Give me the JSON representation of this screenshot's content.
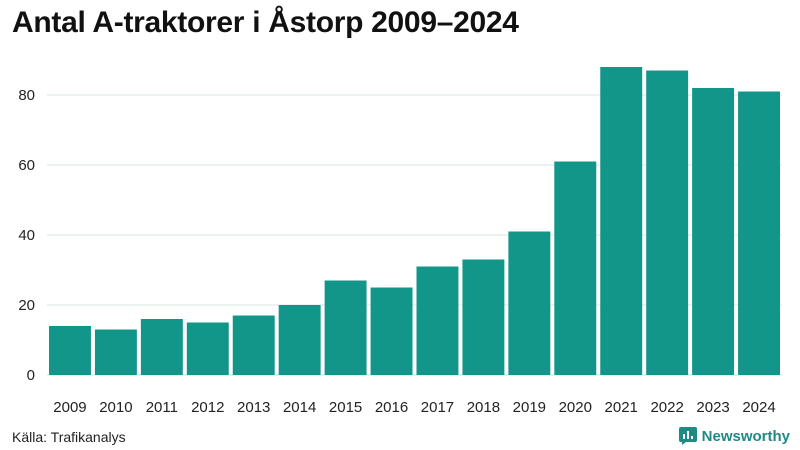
{
  "title": "Antal A-traktorer i Åstorp 2009–2024",
  "source": "Källa: Trafikanalys",
  "brand": {
    "name": "Newsworthy",
    "icon": "newsworthy-logo-icon",
    "color": "#1f8a84"
  },
  "chart_data": {
    "type": "bar",
    "categories": [
      "2009",
      "2010",
      "2011",
      "2012",
      "2013",
      "2014",
      "2015",
      "2016",
      "2017",
      "2018",
      "2019",
      "2020",
      "2021",
      "2022",
      "2023",
      "2024"
    ],
    "values": [
      14,
      13,
      16,
      15,
      17,
      20,
      27,
      25,
      31,
      33,
      41,
      61,
      88,
      87,
      82,
      81
    ],
    "ylim": [
      0,
      90
    ],
    "yticks": [
      0,
      20,
      40,
      60,
      80
    ],
    "grid": true,
    "bar_color": "#13968a",
    "grid_color": "#dde3e6"
  }
}
